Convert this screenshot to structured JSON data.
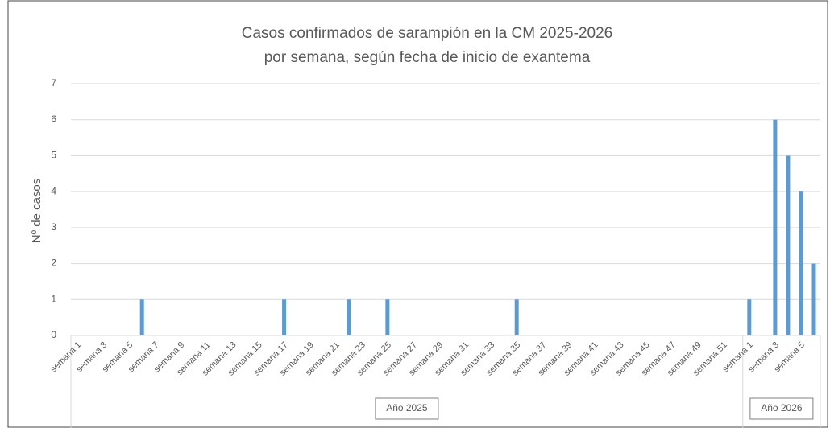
{
  "chart_data": {
    "type": "bar",
    "title": "Casos confirmados de sarampión en la CM 2025-2026",
    "subtitle": "por semana, según fecha de inicio de exantema",
    "y_label": "Nº de casos",
    "color": "#5b9bd5",
    "grid": true,
    "ylim": [
      0,
      7
    ],
    "yticks": [
      0,
      1,
      2,
      3,
      4,
      5,
      6,
      7
    ],
    "groups": [
      {
        "label": "Año 2025",
        "categories": [
          "semana 1",
          null,
          "semana 3",
          null,
          "semana 5",
          null,
          "semana 7",
          null,
          "semana 9",
          null,
          "semana 11",
          null,
          "semana 13",
          null,
          "semana 15",
          null,
          "semana 17",
          null,
          "semana 19",
          null,
          "semana 21",
          null,
          "semana 23",
          null,
          "semana 25",
          null,
          "semana 27",
          null,
          "semana 29",
          null,
          "semana 31",
          null,
          "semana 33",
          null,
          "semana 35",
          null,
          "semana 37",
          null,
          "semana 39",
          null,
          "semana 41",
          null,
          "semana 43",
          null,
          "semana 45",
          null,
          "semana 47",
          null,
          "semana 49",
          null,
          "semana 51",
          null
        ],
        "values": [
          0,
          0,
          0,
          0,
          0,
          1,
          0,
          0,
          0,
          0,
          0,
          0,
          0,
          0,
          0,
          0,
          1,
          0,
          0,
          0,
          0,
          1,
          0,
          0,
          1,
          0,
          0,
          0,
          0,
          0,
          0,
          0,
          0,
          0,
          1,
          0,
          0,
          0,
          0,
          0,
          0,
          0,
          0,
          0,
          0,
          0,
          0,
          0,
          0,
          0,
          0,
          0
        ]
      },
      {
        "label": "Año 2026",
        "categories": [
          "semana 1",
          null,
          "semana 3",
          null,
          "semana 5",
          null
        ],
        "values": [
          1,
          0,
          6,
          5,
          4,
          2
        ]
      }
    ]
  }
}
